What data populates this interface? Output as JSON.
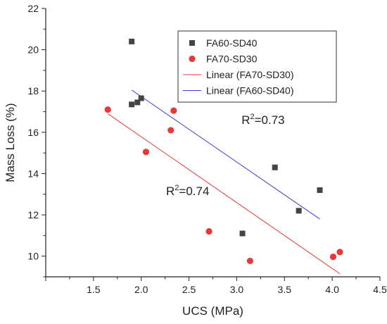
{
  "chart_data": {
    "type": "scatter",
    "xlabel": "UCS (MPa)",
    "ylabel": "Mass Loss (%)",
    "xlim": [
      1.0,
      4.5
    ],
    "ylim": [
      9,
      22
    ],
    "x_ticks": [
      "1.5",
      "2.0",
      "2.5",
      "3.0",
      "3.5",
      "4.0",
      "4.5"
    ],
    "y_ticks": [
      "10",
      "12",
      "14",
      "16",
      "18",
      "20",
      "22"
    ],
    "grid": false,
    "legend_position": "top-right",
    "series": [
      {
        "name": "FA60-SD40",
        "marker": "square",
        "color": "#444444",
        "points": [
          {
            "x": 1.9,
            "y": 20.4
          },
          {
            "x": 1.9,
            "y": 17.35
          },
          {
            "x": 1.96,
            "y": 17.45
          },
          {
            "x": 2.0,
            "y": 17.65
          },
          {
            "x": 3.06,
            "y": 11.1
          },
          {
            "x": 3.4,
            "y": 14.3
          },
          {
            "x": 3.65,
            "y": 12.2
          },
          {
            "x": 3.87,
            "y": 13.2
          }
        ]
      },
      {
        "name": "FA70-SD30",
        "marker": "circle",
        "color": "#e8393a",
        "points": [
          {
            "x": 1.65,
            "y": 17.1
          },
          {
            "x": 2.05,
            "y": 15.05
          },
          {
            "x": 2.31,
            "y": 16.1
          },
          {
            "x": 2.34,
            "y": 17.05
          },
          {
            "x": 2.71,
            "y": 11.2
          },
          {
            "x": 3.14,
            "y": 9.77
          },
          {
            "x": 4.01,
            "y": 9.97
          },
          {
            "x": 4.08,
            "y": 10.2
          }
        ]
      }
    ],
    "fits": [
      {
        "name": "Linear (FA70-SD30)",
        "color": "#e8393a",
        "x": [
          1.65,
          4.08
        ],
        "y": [
          16.9,
          9.15
        ]
      },
      {
        "name": "Linear (FA60-SD40)",
        "color": "#3b3bd6",
        "x": [
          1.9,
          3.87
        ],
        "y": [
          18.05,
          11.8
        ]
      }
    ],
    "annotations": [
      {
        "base": "R",
        "sup": "2",
        "rest": "=0.73",
        "x": 3.05,
        "y": 16.4
      },
      {
        "base": "R",
        "sup": "2",
        "rest": "=0.74",
        "x": 2.26,
        "y": 12.95
      }
    ],
    "legend": [
      {
        "label": "FA60-SD40",
        "kind": "square",
        "color": "#444444"
      },
      {
        "label": "FA70-SD30",
        "kind": "circle",
        "color": "#e8393a"
      },
      {
        "label": "Linear (FA70-SD30)",
        "kind": "line",
        "color": "#e8393a"
      },
      {
        "label": "Linear (FA60-SD40)",
        "kind": "line",
        "color": "#3b3bd6"
      }
    ]
  }
}
